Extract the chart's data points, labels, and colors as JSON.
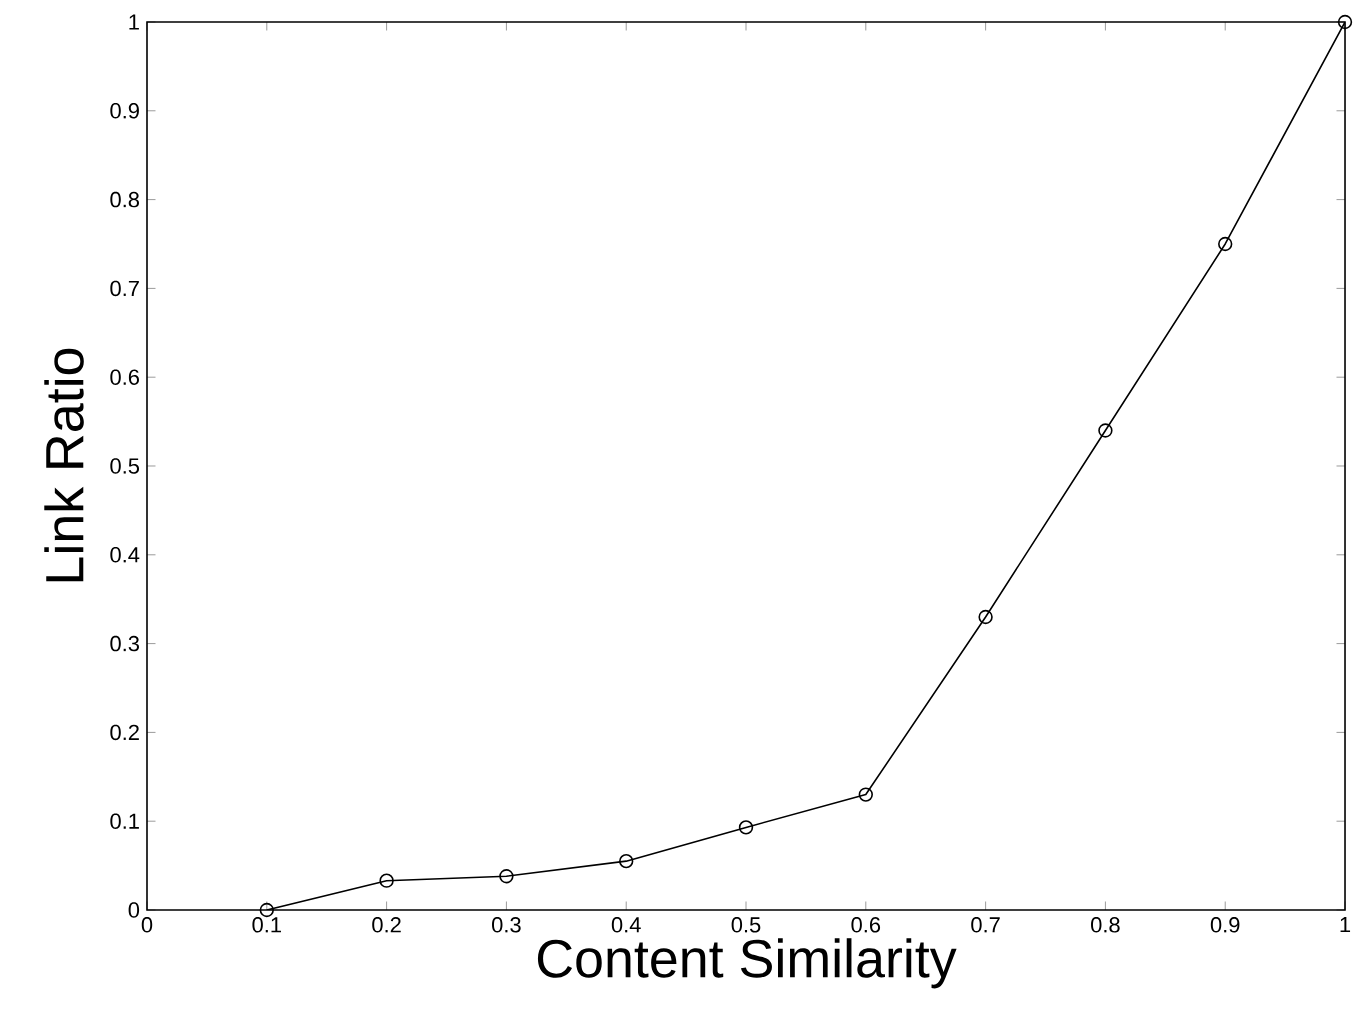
{
  "chart_data": {
    "type": "line",
    "xlabel": "Content Similarity",
    "ylabel": "Link Ratio",
    "x": [
      0.1,
      0.2,
      0.3,
      0.4,
      0.5,
      0.6,
      0.7,
      0.8,
      0.9,
      1.0
    ],
    "series": [
      {
        "color": "#000000",
        "values": [
          0,
          0.033,
          0.038,
          0.055,
          0.093,
          0.13,
          0.33,
          0.54,
          0.75,
          1.0
        ]
      }
    ],
    "xlim": [
      0,
      1
    ],
    "ylim": [
      0,
      1
    ],
    "xticks": [
      0,
      0.1,
      0.2,
      0.3,
      0.4,
      0.5,
      0.6,
      0.7,
      0.8,
      0.9,
      1
    ],
    "yticks": [
      0,
      0.1,
      0.2,
      0.3,
      0.4,
      0.5,
      0.6,
      0.7,
      0.8,
      0.9,
      1
    ],
    "grid": false,
    "marker": "circle",
    "line_style": "solid"
  }
}
